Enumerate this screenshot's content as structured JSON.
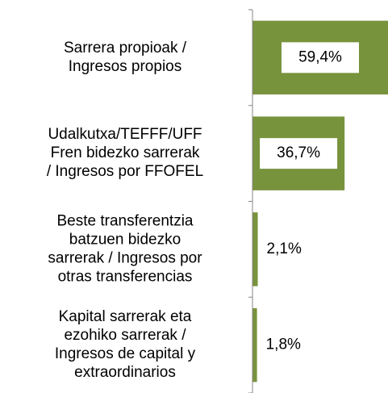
{
  "chart_data": {
    "type": "barh",
    "categories": [
      "Sarrera propioak /\nIngresos propios",
      "Udalkutxa/TEFFF/UFF\nFren bidezko sarrerak\n/ Ingresos por FFOFEL",
      "Beste transferentzia\nbatzuen bidezko\nsarrerak / Ingresos por\notras transferencias",
      "Kapital sarrerak eta\nezohiko sarrerak /\nIngresos de capital y\nextraordinarios"
    ],
    "values": [
      59.4,
      36.7,
      2.1,
      1.8
    ],
    "value_labels": [
      "59,4%",
      "36,7%",
      "2,1%",
      "1,8%"
    ],
    "color": "#77933c",
    "xlim": [
      0,
      54
    ]
  }
}
